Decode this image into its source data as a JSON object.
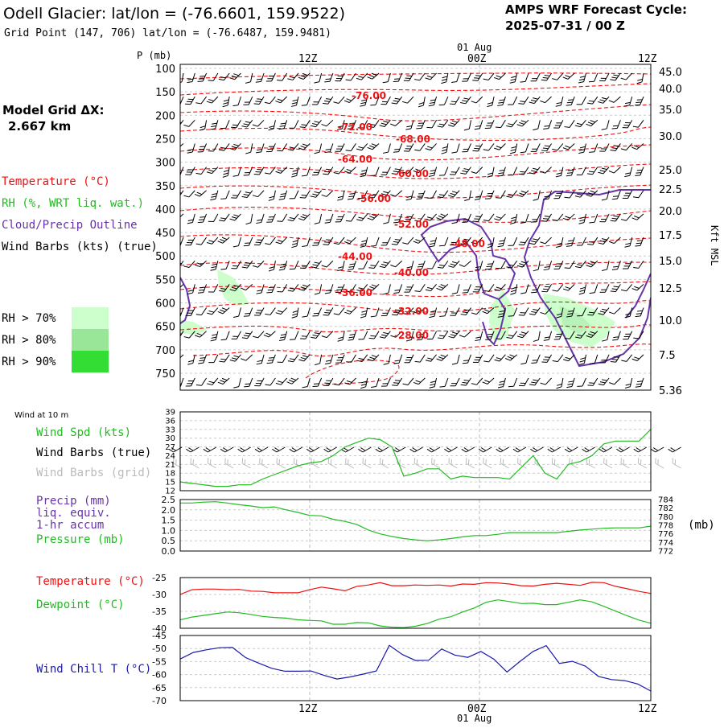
{
  "header": {
    "title": "Odell Glacier:  lat/lon = (-76.6601, 159.9522)",
    "subtitle": "Grid Point (147, 706) lat/lon = (-76.6487, 159.9481)",
    "forecast_line1": "AMPS WRF Forecast Cycle:",
    "forecast_line2": "2025-07-31 / 00  Z"
  },
  "left_panel": {
    "model_grid_label": "Model Grid ΔX:",
    "model_grid_value": "2.667 km",
    "legend_temperature": "Temperature (°C)",
    "legend_rh": "RH (%, WRT liq. wat.)",
    "legend_cloud": "Cloud/Precip Outline",
    "legend_wind": "Wind Barbs (kts) (true)",
    "rh_thresholds": [
      "RH > 70%",
      "RH > 80%",
      "RH > 90%"
    ],
    "rh_colors": [
      "#ccffcc",
      "#99e699",
      "#33dd33"
    ]
  },
  "time_axis": {
    "top_labels": [
      "12Z",
      "00Z",
      "12Z"
    ],
    "date_label": "01 Aug",
    "bottom_labels": [
      "12Z",
      "00Z",
      "12Z"
    ]
  },
  "colors": {
    "temperature": "#ee1111",
    "green": "#22bb22",
    "purple": "#6633aa",
    "blue": "#1a1aaa",
    "grey_barb": "#bbbbbb"
  },
  "chart_data": [
    {
      "type": "contour",
      "name": "upper_air",
      "y_axis_title": "P (mb)",
      "pressure_ticks": [
        "100",
        "150",
        "200",
        "250",
        "300",
        "350",
        "400",
        "450",
        "500",
        "550",
        "600",
        "650",
        "700",
        "750"
      ],
      "kft_ticks": [
        "45.0",
        "40.0",
        "35.0",
        "30.0",
        "25.0",
        "22.5",
        "20.0",
        "17.5",
        "15.0",
        "12.5",
        "10.0",
        "7.5",
        "5.36"
      ],
      "kft_axis_title": "Kft MSL",
      "temperature_labels": [
        "-76.00",
        "-72.00",
        "-68.00",
        "-64.00",
        "-60.00",
        "-56.00",
        "-52.00",
        "-48.00",
        "-44.00",
        "-40.00",
        "-36.00",
        "-32.00",
        "-28.00"
      ]
    },
    {
      "type": "line",
      "name": "wind",
      "caption": "Wind at 10 m",
      "labels": [
        "Wind Spd (kts)",
        "Wind Barbs (true)",
        "Wind Barbs (grid)"
      ],
      "y_ticks": [
        "39",
        "36",
        "33",
        "30",
        "27",
        "24",
        "21",
        "18",
        "15",
        "12"
      ],
      "ylim": [
        12,
        39
      ],
      "wind_speed": [
        15,
        14.5,
        14,
        13.5,
        13.5,
        14,
        14,
        16,
        17.5,
        19,
        20.5,
        21.5,
        22,
        24,
        27,
        28.5,
        30,
        29.5,
        27,
        17,
        18,
        19.5,
        19.5,
        16,
        17,
        16.5,
        16.5,
        16.5,
        16,
        20,
        24,
        18,
        16,
        21,
        22,
        24,
        28,
        29,
        29,
        29,
        33
      ]
    },
    {
      "type": "line",
      "name": "precip_pressure",
      "labels": [
        "Precip (mm)",
        "liq. equiv.",
        "1-hr accum",
        "Pressure (mb)"
      ],
      "y_ticks_left": [
        "2.5",
        "2.0",
        "1.5",
        "1.0",
        "0.5",
        "0.0"
      ],
      "y_ticks_right": [
        "784",
        "782",
        "780",
        "778",
        "776",
        "774",
        "772"
      ],
      "right_unit": "(mb)",
      "precip_ylim": [
        0,
        2.5
      ],
      "pressure_ylim": [
        772,
        784
      ],
      "pressure": [
        783.2,
        783.2,
        783.4,
        783.5,
        783.2,
        782.8,
        782.5,
        782.1,
        782.3,
        781.6,
        781.0,
        780.3,
        780.2,
        779.4,
        778.9,
        778.2,
        776.9,
        776.0,
        775.4,
        774.9,
        774.6,
        774.4,
        774.6,
        774.9,
        775.3,
        775.6,
        775.6,
        775.9,
        776.3,
        776.3,
        776.3,
        776.3,
        776.3,
        776.6,
        776.9,
        777.1,
        777.3,
        777.4,
        777.4,
        777.4,
        777.8
      ]
    },
    {
      "type": "line",
      "name": "temp_dewpoint",
      "labels": [
        "Temperature (°C)",
        "Dewpoint (°C)"
      ],
      "y_ticks": [
        "-25",
        "-30",
        "-35",
        "-40"
      ],
      "ylim": [
        -40,
        -25
      ],
      "temperature": [
        -30,
        -28.6,
        -28.4,
        -28.4,
        -28.6,
        -28.5,
        -29,
        -29.1,
        -29.5,
        -29.5,
        -29.5,
        -28.6,
        -27.8,
        -28.3,
        -28.9,
        -27.6,
        -27.2,
        -26.5,
        -27.4,
        -27.4,
        -27.2,
        -27.3,
        -27.2,
        -27.5,
        -26.9,
        -27,
        -26.5,
        -26.6,
        -26.9,
        -27.4,
        -27.5,
        -27,
        -26.7,
        -27,
        -27.3,
        -26.4,
        -26.5,
        -27.6,
        -28.3,
        -29.1,
        -29.7
      ],
      "dewpoint": [
        -37.5,
        -36.7,
        -36.2,
        -35.7,
        -35.2,
        -35.4,
        -35.9,
        -36.5,
        -36.8,
        -37,
        -37.5,
        -37.7,
        -37.8,
        -38.8,
        -38.8,
        -38.3,
        -38.4,
        -39.3,
        -39.7,
        -39.8,
        -39.4,
        -38.6,
        -37.3,
        -36.6,
        -35.2,
        -34,
        -32.3,
        -31.6,
        -32.1,
        -32.7,
        -32.6,
        -33,
        -33,
        -32.3,
        -31.6,
        -32.2,
        -33.5,
        -34.9,
        -36.3,
        -37.6,
        -38.5
      ]
    },
    {
      "type": "line",
      "name": "wind_chill",
      "labels": [
        "Wind Chill T (°C)"
      ],
      "y_ticks": [
        "-45",
        "-50",
        "-55",
        "-60",
        "-65",
        "-70"
      ],
      "ylim": [
        -70,
        -45
      ],
      "wind_chill": [
        -54,
        -51.5,
        -50.5,
        -49.7,
        -49.6,
        -53.5,
        -55.6,
        -57.6,
        -58.7,
        -58.7,
        -58.6,
        -60.3,
        -61.7,
        -60.9,
        -59.8,
        -58.6,
        -48.8,
        -52.3,
        -54.6,
        -54.5,
        -50.2,
        -52.5,
        -53.4,
        -51.1,
        -54.1,
        -59,
        -54.9,
        -51.1,
        -48.9,
        -55.7,
        -54.9,
        -56.8,
        -60.7,
        -61.9,
        -62.3,
        -63.6,
        -66.3
      ]
    }
  ]
}
